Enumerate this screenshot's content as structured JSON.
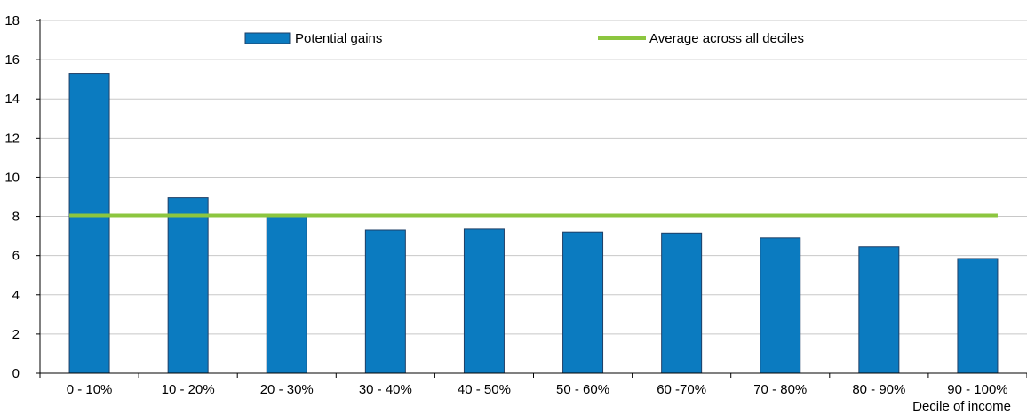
{
  "chart_data": {
    "type": "bar",
    "categories": [
      "0 - 10%",
      "10 - 20%",
      "20 - 30%",
      "30 - 40%",
      "40 - 50%",
      "50 - 60%",
      "60 -70%",
      "70 - 80%",
      "80 - 90%",
      "90 - 100%"
    ],
    "series": [
      {
        "name": "Potential gains",
        "type": "bar",
        "color": "#0b7bc0",
        "values": [
          15.3,
          8.95,
          8.05,
          7.3,
          7.35,
          7.2,
          7.15,
          6.9,
          6.45,
          5.85
        ]
      },
      {
        "name": "Average across all deciles",
        "type": "line",
        "color": "#8cc63f",
        "values": [
          8.05,
          8.05,
          8.05,
          8.05,
          8.05,
          8.05,
          8.05,
          8.05,
          8.05,
          8.05
        ]
      }
    ],
    "xlabel": "Decile of income",
    "ylabel": "",
    "ylim": [
      0,
      18
    ],
    "yticks": [
      0,
      2,
      4,
      6,
      8,
      10,
      12,
      14,
      16,
      18
    ],
    "grid": true,
    "legend_position": "top"
  }
}
